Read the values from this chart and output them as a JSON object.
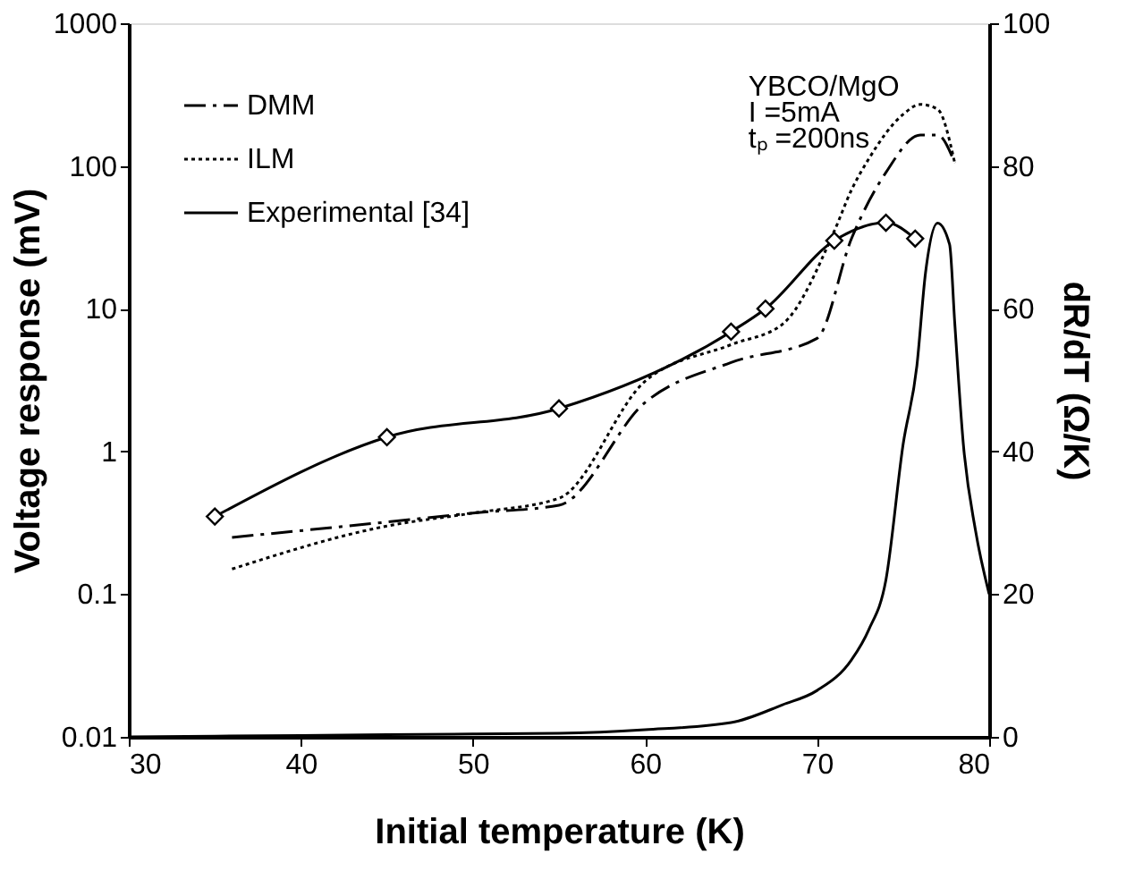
{
  "chart_data": {
    "type": "line",
    "xlabel": "Initial temperature (K)",
    "ylabel": "Voltage response (mV)",
    "y2label": "dR/dT (Ω/K)",
    "annotations": [
      "YBCO/MgO",
      "I =5mA",
      "tₚ =200ns"
    ],
    "xlim": [
      30,
      80
    ],
    "xticks": [
      30,
      40,
      50,
      60,
      70,
      80
    ],
    "ylim": [
      0.01,
      1000
    ],
    "yticks": [
      0.01,
      0.1,
      1,
      10,
      100,
      1000
    ],
    "y2lim": [
      0,
      100
    ],
    "y2ticks": [
      0,
      20,
      40,
      60,
      80,
      100
    ],
    "log": "y",
    "grid": false,
    "legend": "top left",
    "series": [
      {
        "name": "DMM",
        "color": "#000000",
        "line_style": "dashed",
        "marker": "none",
        "x": [
          36,
          45,
          50,
          55,
          60,
          65,
          70,
          72,
          74,
          76,
          77,
          78
        ],
        "values": [
          0.25,
          0.32,
          0.37,
          0.42,
          2.2,
          4.2,
          6.2,
          31,
          90,
          165,
          165,
          105
        ]
      },
      {
        "name": "ILM",
        "color": "#000000",
        "line_style": "dotted",
        "marker": "none",
        "x": [
          36,
          45,
          50,
          55,
          60,
          65,
          68,
          71,
          72,
          73,
          75,
          76,
          77,
          78
        ],
        "values": [
          0.15,
          0.3,
          0.37,
          0.47,
          3.1,
          5.6,
          7.8,
          35,
          68,
          112,
          230,
          270,
          250,
          105
        ]
      },
      {
        "name": "Experimental [34]",
        "color": "#000000",
        "line_style": "solid",
        "marker": "diamond",
        "x": [
          35,
          45,
          55,
          65,
          67,
          71,
          74,
          75.7
        ],
        "values": [
          0.35,
          1.26,
          2.0,
          6.9,
          10,
          30,
          40,
          31
        ]
      },
      {
        "color": "#000000",
        "line_style": "solid",
        "marker": "none",
        "axis": "y2",
        "x": [
          30,
          40,
          50,
          55,
          60,
          65,
          68,
          70,
          72,
          73,
          74,
          75,
          75.8,
          76.3,
          77,
          77.7,
          78,
          78.5,
          79.2,
          80
        ],
        "values": [
          0,
          0.2,
          0.4,
          0.5,
          1,
          2,
          4.5,
          6.5,
          10.8,
          15,
          22,
          41,
          52,
          65,
          72,
          69,
          58,
          41,
          29,
          20
        ]
      }
    ]
  }
}
